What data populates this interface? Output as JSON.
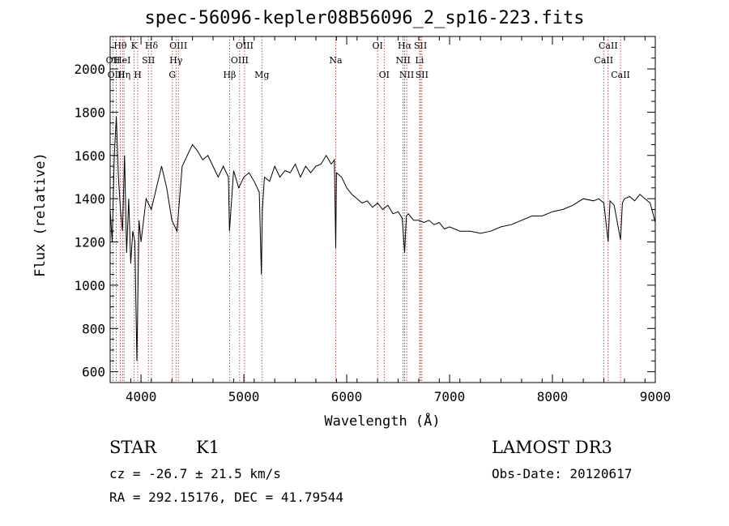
{
  "chart_data": {
    "type": "line",
    "title": "spec-56096-kepler08B56096_2_sp16-223.fits",
    "xlabel": "Wavelength (Å)",
    "ylabel": "Flux (relative)",
    "xlim": [
      3700,
      9000
    ],
    "ylim": [
      550,
      2150
    ],
    "xticks": [
      4000,
      5000,
      6000,
      7000,
      8000,
      9000
    ],
    "yticks": [
      600,
      800,
      1000,
      1200,
      1400,
      1600,
      1800,
      2000
    ],
    "grid": false,
    "series": [
      {
        "name": "spectrum",
        "x": [
          3700,
          3720,
          3740,
          3760,
          3780,
          3800,
          3820,
          3840,
          3860,
          3880,
          3900,
          3920,
          3940,
          3960,
          3980,
          4000,
          4050,
          4100,
          4150,
          4200,
          4250,
          4300,
          4350,
          4400,
          4450,
          4500,
          4550,
          4600,
          4650,
          4700,
          4750,
          4800,
          4850,
          4860,
          4900,
          4950,
          5000,
          5050,
          5100,
          5150,
          5170,
          5180,
          5200,
          5250,
          5300,
          5350,
          5400,
          5450,
          5500,
          5550,
          5600,
          5650,
          5700,
          5750,
          5800,
          5850,
          5880,
          5893,
          5900,
          5950,
          6000,
          6050,
          6100,
          6150,
          6200,
          6250,
          6300,
          6350,
          6400,
          6450,
          6500,
          6540,
          6563,
          6580,
          6600,
          6650,
          6700,
          6750,
          6800,
          6850,
          6900,
          6950,
          7000,
          7100,
          7200,
          7300,
          7400,
          7500,
          7600,
          7700,
          7800,
          7900,
          8000,
          8100,
          8200,
          8300,
          8400,
          8450,
          8500,
          8542,
          8560,
          8600,
          8662,
          8680,
          8700,
          8750,
          8800,
          8850,
          8900,
          8950,
          9000
        ],
        "y": [
          1350,
          1200,
          1600,
          1780,
          1500,
          1350,
          1250,
          1600,
          1150,
          1400,
          1100,
          1250,
          1200,
          650,
          1300,
          1200,
          1400,
          1350,
          1450,
          1550,
          1450,
          1300,
          1250,
          1550,
          1600,
          1650,
          1620,
          1580,
          1600,
          1550,
          1500,
          1550,
          1500,
          1250,
          1530,
          1450,
          1500,
          1520,
          1480,
          1430,
          1050,
          1350,
          1500,
          1480,
          1550,
          1500,
          1530,
          1520,
          1560,
          1500,
          1550,
          1520,
          1550,
          1560,
          1600,
          1560,
          1580,
          1170,
          1520,
          1500,
          1450,
          1420,
          1400,
          1380,
          1390,
          1360,
          1380,
          1350,
          1370,
          1330,
          1340,
          1310,
          1150,
          1320,
          1330,
          1300,
          1300,
          1290,
          1300,
          1280,
          1290,
          1260,
          1270,
          1250,
          1250,
          1240,
          1250,
          1270,
          1280,
          1300,
          1320,
          1320,
          1340,
          1350,
          1370,
          1400,
          1390,
          1400,
          1380,
          1200,
          1390,
          1370,
          1210,
          1380,
          1400,
          1410,
          1390,
          1420,
          1400,
          1380,
          1290
        ]
      }
    ],
    "line_markers": [
      {
        "label": "Hθ",
        "x": 3798,
        "row": 0
      },
      {
        "label": "OII",
        "x": 3727,
        "row": 1
      },
      {
        "label": "OIII",
        "x": 3760,
        "row": 2
      },
      {
        "label": "HeI",
        "x": 3820,
        "row": 1
      },
      {
        "label": "Hη",
        "x": 3835,
        "row": 2
      },
      {
        "label": "K",
        "x": 3934,
        "row": 0
      },
      {
        "label": "H",
        "x": 3968,
        "row": 2
      },
      {
        "label": "SII",
        "x": 4072,
        "row": 1
      },
      {
        "label": "Hδ",
        "x": 4102,
        "row": 0
      },
      {
        "label": "OIII",
        "x": 4363,
        "row": 0
      },
      {
        "label": "Hγ",
        "x": 4340,
        "row": 1
      },
      {
        "label": "G",
        "x": 4305,
        "row": 2
      },
      {
        "label": "Hβ",
        "x": 4861,
        "row": 2
      },
      {
        "label": "OIII",
        "x": 5007,
        "row": 0
      },
      {
        "label": "OIII",
        "x": 4959,
        "row": 1
      },
      {
        "label": "Mg",
        "x": 5175,
        "row": 2
      },
      {
        "label": "Na",
        "x": 5893,
        "row": 1
      },
      {
        "label": "OI",
        "x": 6300,
        "row": 0
      },
      {
        "label": "OI",
        "x": 6364,
        "row": 2
      },
      {
        "label": "Hα",
        "x": 6563,
        "row": 0
      },
      {
        "label": "NII",
        "x": 6548,
        "row": 1
      },
      {
        "label": "NII",
        "x": 6583,
        "row": 2
      },
      {
        "label": "SII",
        "x": 6717,
        "row": 0
      },
      {
        "label": "Li",
        "x": 6708,
        "row": 1
      },
      {
        "label": "SII",
        "x": 6731,
        "row": 2
      },
      {
        "label": "CaII",
        "x": 8542,
        "row": 0
      },
      {
        "label": "CaII",
        "x": 8498,
        "row": 1
      },
      {
        "label": "CaII",
        "x": 8662,
        "row": 2
      }
    ]
  },
  "info": {
    "object_type": "STAR",
    "subclass": "K1",
    "survey": "LAMOST DR3",
    "cz": "cz = -26.7 ± 21.5 km/s",
    "obs_date": "Obs-Date: 20120617",
    "radec": "RA = 292.15176, DEC =  41.79544"
  },
  "colors": {
    "axis": "#000000",
    "spectrum": "#000000",
    "marker": "#b22222"
  }
}
